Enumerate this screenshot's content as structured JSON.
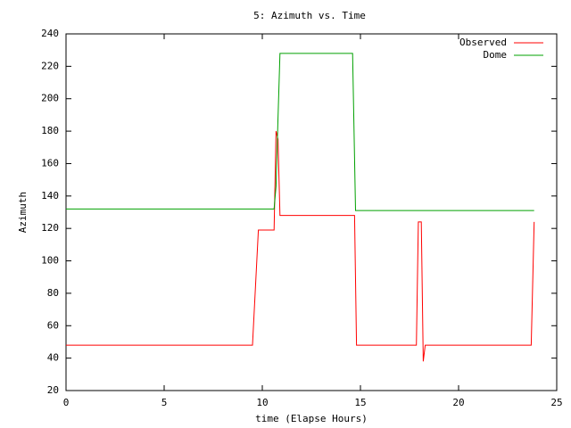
{
  "chart_data": {
    "type": "line",
    "title": "5: Azimuth vs. Time",
    "x_label": "time (Elapse Hours)",
    "y_label": "Azimuth",
    "xlim": [
      0,
      25
    ],
    "xticks": [
      0,
      5,
      10,
      15,
      20,
      25
    ],
    "ylim": [
      20,
      240
    ],
    "yticks": [
      20,
      40,
      60,
      80,
      100,
      120,
      140,
      160,
      180,
      200,
      220,
      240
    ],
    "grid": false,
    "legend": "top-right",
    "series": [
      {
        "name": "Observed",
        "color": "#ff0000",
        "x": [
          0,
          9.5,
          9.8,
          10.6,
          10.7,
          10.8,
          10.9,
          14.7,
          14.8,
          17.85,
          17.95,
          18.1,
          18.2,
          18.3,
          23.7,
          23.85
        ],
        "values": [
          48,
          48,
          119,
          119,
          180,
          175,
          128,
          128,
          48,
          48,
          124,
          124,
          38,
          48,
          48,
          124
        ]
      },
      {
        "name": "Dome",
        "color": "#00a000",
        "x": [
          0,
          10.6,
          10.7,
          10.8,
          10.9,
          14.6,
          14.75,
          23.85
        ],
        "values": [
          132,
          132,
          146,
          188,
          228,
          228,
          131,
          131
        ]
      }
    ]
  }
}
